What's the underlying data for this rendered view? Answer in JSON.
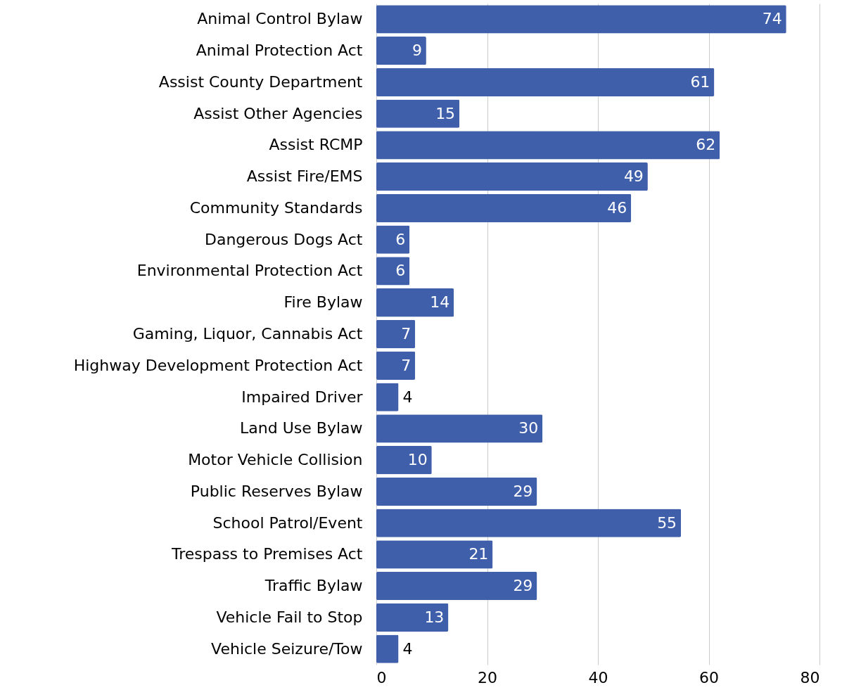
{
  "chart_data": {
    "type": "bar",
    "orientation": "horizontal",
    "categories": [
      "Animal Control Bylaw",
      "Animal Protection Act",
      "Assist County Department",
      "Assist Other Agencies",
      "Assist RCMP",
      "Assist Fire/EMS",
      "Community Standards",
      "Dangerous Dogs Act",
      "Environmental Protection Act",
      "Fire Bylaw",
      "Gaming, Liquor, Cannabis Act",
      "Highway Development Protection Act",
      "Impaired Driver",
      "Land Use Bylaw",
      "Motor Vehicle Collision",
      "Public Reserves Bylaw",
      "School Patrol/Event",
      "Trespass to Premises Act",
      "Traffic Bylaw",
      "Vehicle Fail to Stop",
      "Vehicle Seizure/Tow"
    ],
    "values": [
      74,
      9,
      61,
      15,
      62,
      49,
      46,
      6,
      6,
      14,
      7,
      7,
      4,
      30,
      10,
      29,
      55,
      21,
      29,
      13,
      4
    ],
    "color": "#3f5fab",
    "xlim": [
      0,
      80
    ],
    "xticks": [
      0,
      20,
      40,
      60,
      80
    ],
    "grid": "x",
    "data_labels": true
  }
}
